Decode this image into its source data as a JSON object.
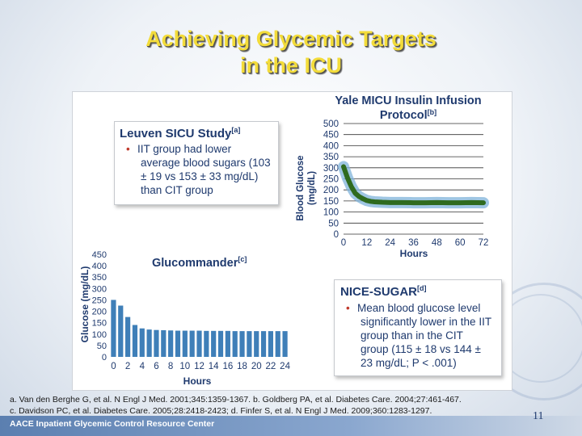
{
  "slide": {
    "title_line1": "Achieving Glycemic Targets",
    "title_line2": "in the ICU",
    "page_number": "11",
    "footer_org": "AACE Inpatient Glycemic Control Resource Center"
  },
  "leuven": {
    "title": "Leuven SICU Study",
    "ref": "[a]",
    "bullet_l1": "IIT group had lower",
    "bullet_l2": "average blood sugars (103",
    "bullet_l3": "± 19 vs 153 ± 33 mg/dL)",
    "bullet_l4": "than CIT group"
  },
  "nice": {
    "title": "NICE-SUGAR",
    "ref": "[d]",
    "bullet_l1": "Mean blood glucose level",
    "bullet_l2": "significantly lower in the IIT",
    "bullet_l3": "group than in the CIT",
    "bullet_l4": "group (115 ± 18 vs 144 ±",
    "bullet_l5": "23 mg/dL; P < .001)"
  },
  "glucommander_label": {
    "title": "Glucommander",
    "ref": "[c]"
  },
  "references": {
    "line1": "a. Van den Berghe G, et al. N Engl J Med. 2001;345:1359-1367. b. Goldberg PA, et al. Diabetes Care. 2004;27:461-467.",
    "line2": "c. Davidson PC, et al. Diabetes Care. 2005;28:2418-2423; d. Finfer S, et al. N Engl J Med. 2009;360:1283-1297."
  },
  "chart_data": [
    {
      "type": "line",
      "title": "Yale MICU Insulin Infusion Protocol",
      "title_ref": "[b]",
      "xlabel": "Hours",
      "ylabel": "Blood Glucose (mg/dL)",
      "xlim": [
        0,
        72
      ],
      "ylim": [
        0,
        500
      ],
      "x_ticks": [
        0,
        12,
        24,
        36,
        48,
        60,
        72
      ],
      "y_ticks": [
        0,
        50,
        100,
        150,
        200,
        250,
        300,
        350,
        400,
        450,
        500
      ],
      "grid": true,
      "colors": {
        "line": "#2f6b1f",
        "band": "#7fb3d9"
      },
      "series": [
        {
          "x": [
            0,
            1,
            2,
            3,
            4,
            5,
            6,
            8,
            10,
            12,
            14,
            16,
            18,
            20,
            24,
            30,
            36,
            42,
            48,
            54,
            60,
            66,
            72
          ],
          "values": [
            305,
            280,
            255,
            235,
            215,
            200,
            185,
            170,
            160,
            152,
            148,
            146,
            145,
            144,
            143,
            143,
            142,
            142,
            143,
            142,
            142,
            143,
            142
          ]
        }
      ]
    },
    {
      "type": "bar",
      "xlabel": "Hours",
      "ylabel": "Glucose (mg/dL)",
      "ylim": [
        0,
        450
      ],
      "x_tick_labels": [
        "0",
        "2",
        "4",
        "6",
        "8",
        "10",
        "12",
        "14",
        "16",
        "18",
        "20",
        "22",
        "24"
      ],
      "y_ticks": [
        0,
        50,
        100,
        150,
        200,
        250,
        300,
        350,
        400,
        450
      ],
      "colors": {
        "bar": "#3f7fb8"
      },
      "categories": [
        0,
        1,
        2,
        3,
        4,
        5,
        6,
        7,
        8,
        9,
        10,
        11,
        12,
        13,
        14,
        15,
        16,
        17,
        18,
        19,
        20,
        21,
        22,
        23,
        24
      ],
      "values": [
        250,
        225,
        175,
        140,
        125,
        120,
        118,
        117,
        116,
        115,
        115,
        115,
        115,
        114,
        114,
        114,
        114,
        113,
        113,
        113,
        113,
        113,
        113,
        113,
        113
      ]
    }
  ]
}
